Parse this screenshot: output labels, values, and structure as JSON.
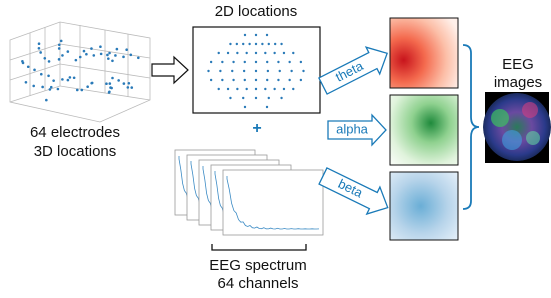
{
  "left": {
    "title_lines": [
      "64 electrodes",
      "3D locations"
    ]
  },
  "middle": {
    "title": "2D locations",
    "plus": "+",
    "spectrum_lines": [
      "EEG spectrum",
      "64 channels"
    ]
  },
  "arrows": [
    "theta",
    "alpha",
    "beta"
  ],
  "output": {
    "title_lines": [
      "EEG",
      "images"
    ]
  }
}
